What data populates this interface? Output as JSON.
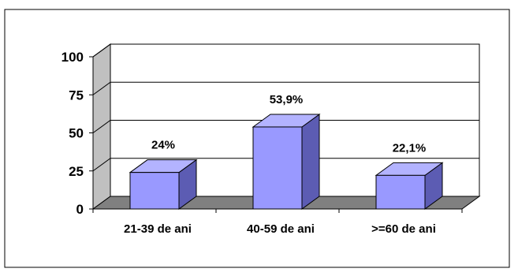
{
  "chart_data": {
    "type": "bar",
    "categories": [
      "21-39 de ani",
      "40-59 de ani",
      ">=60 de ani"
    ],
    "values": [
      24,
      53.9,
      22.1
    ],
    "data_labels": [
      "24%",
      "53,9%",
      "22,1%"
    ],
    "ylim": [
      0,
      100
    ],
    "yticks": [
      "0",
      "25",
      "50",
      "75",
      "100"
    ],
    "ytick_values": [
      0,
      25,
      50,
      75,
      100
    ],
    "title": "",
    "xlabel": "",
    "ylabel": "",
    "grid": true,
    "three_d": true,
    "colors": {
      "bar_front": "#9999FF",
      "bar_top": "#B3B3FF",
      "bar_side": "#5C5CB3",
      "wall": "#C0C0C0",
      "floor": "#808080",
      "grid": "#000000"
    }
  }
}
